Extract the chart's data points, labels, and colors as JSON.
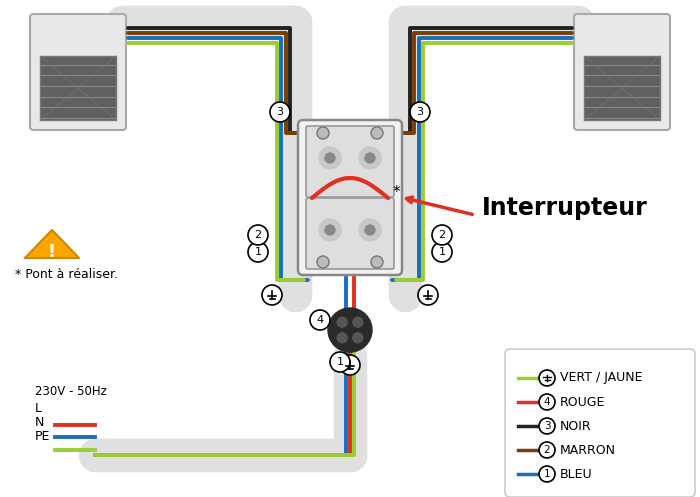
{
  "bg_color": "#ffffff",
  "wire_colors": {
    "blue": "#1a6fbd",
    "brown": "#7B3F00",
    "black": "#222222",
    "red": "#e03020",
    "yellow_green": "#9acd32"
  },
  "legend_items": [
    {
      "num": "1",
      "color": "#1a6fbd",
      "label": "BLEU"
    },
    {
      "num": "2",
      "color": "#7B3F00",
      "label": "MARRON"
    },
    {
      "num": "3",
      "color": "#222222",
      "label": "NOIR"
    },
    {
      "num": "4",
      "color": "#e03020",
      "label": "ROUGE"
    },
    {
      "num": "E",
      "color": "#9acd32",
      "label": "VERT / JAUNE"
    }
  ],
  "label_230v": "230V - 50Hz",
  "label_L": "L",
  "label_N": "N",
  "label_PE": "PE",
  "label_interrupteur": "Interrupteur",
  "label_pont": "* Pont à réaliser.",
  "warning_color": "#FFA500"
}
